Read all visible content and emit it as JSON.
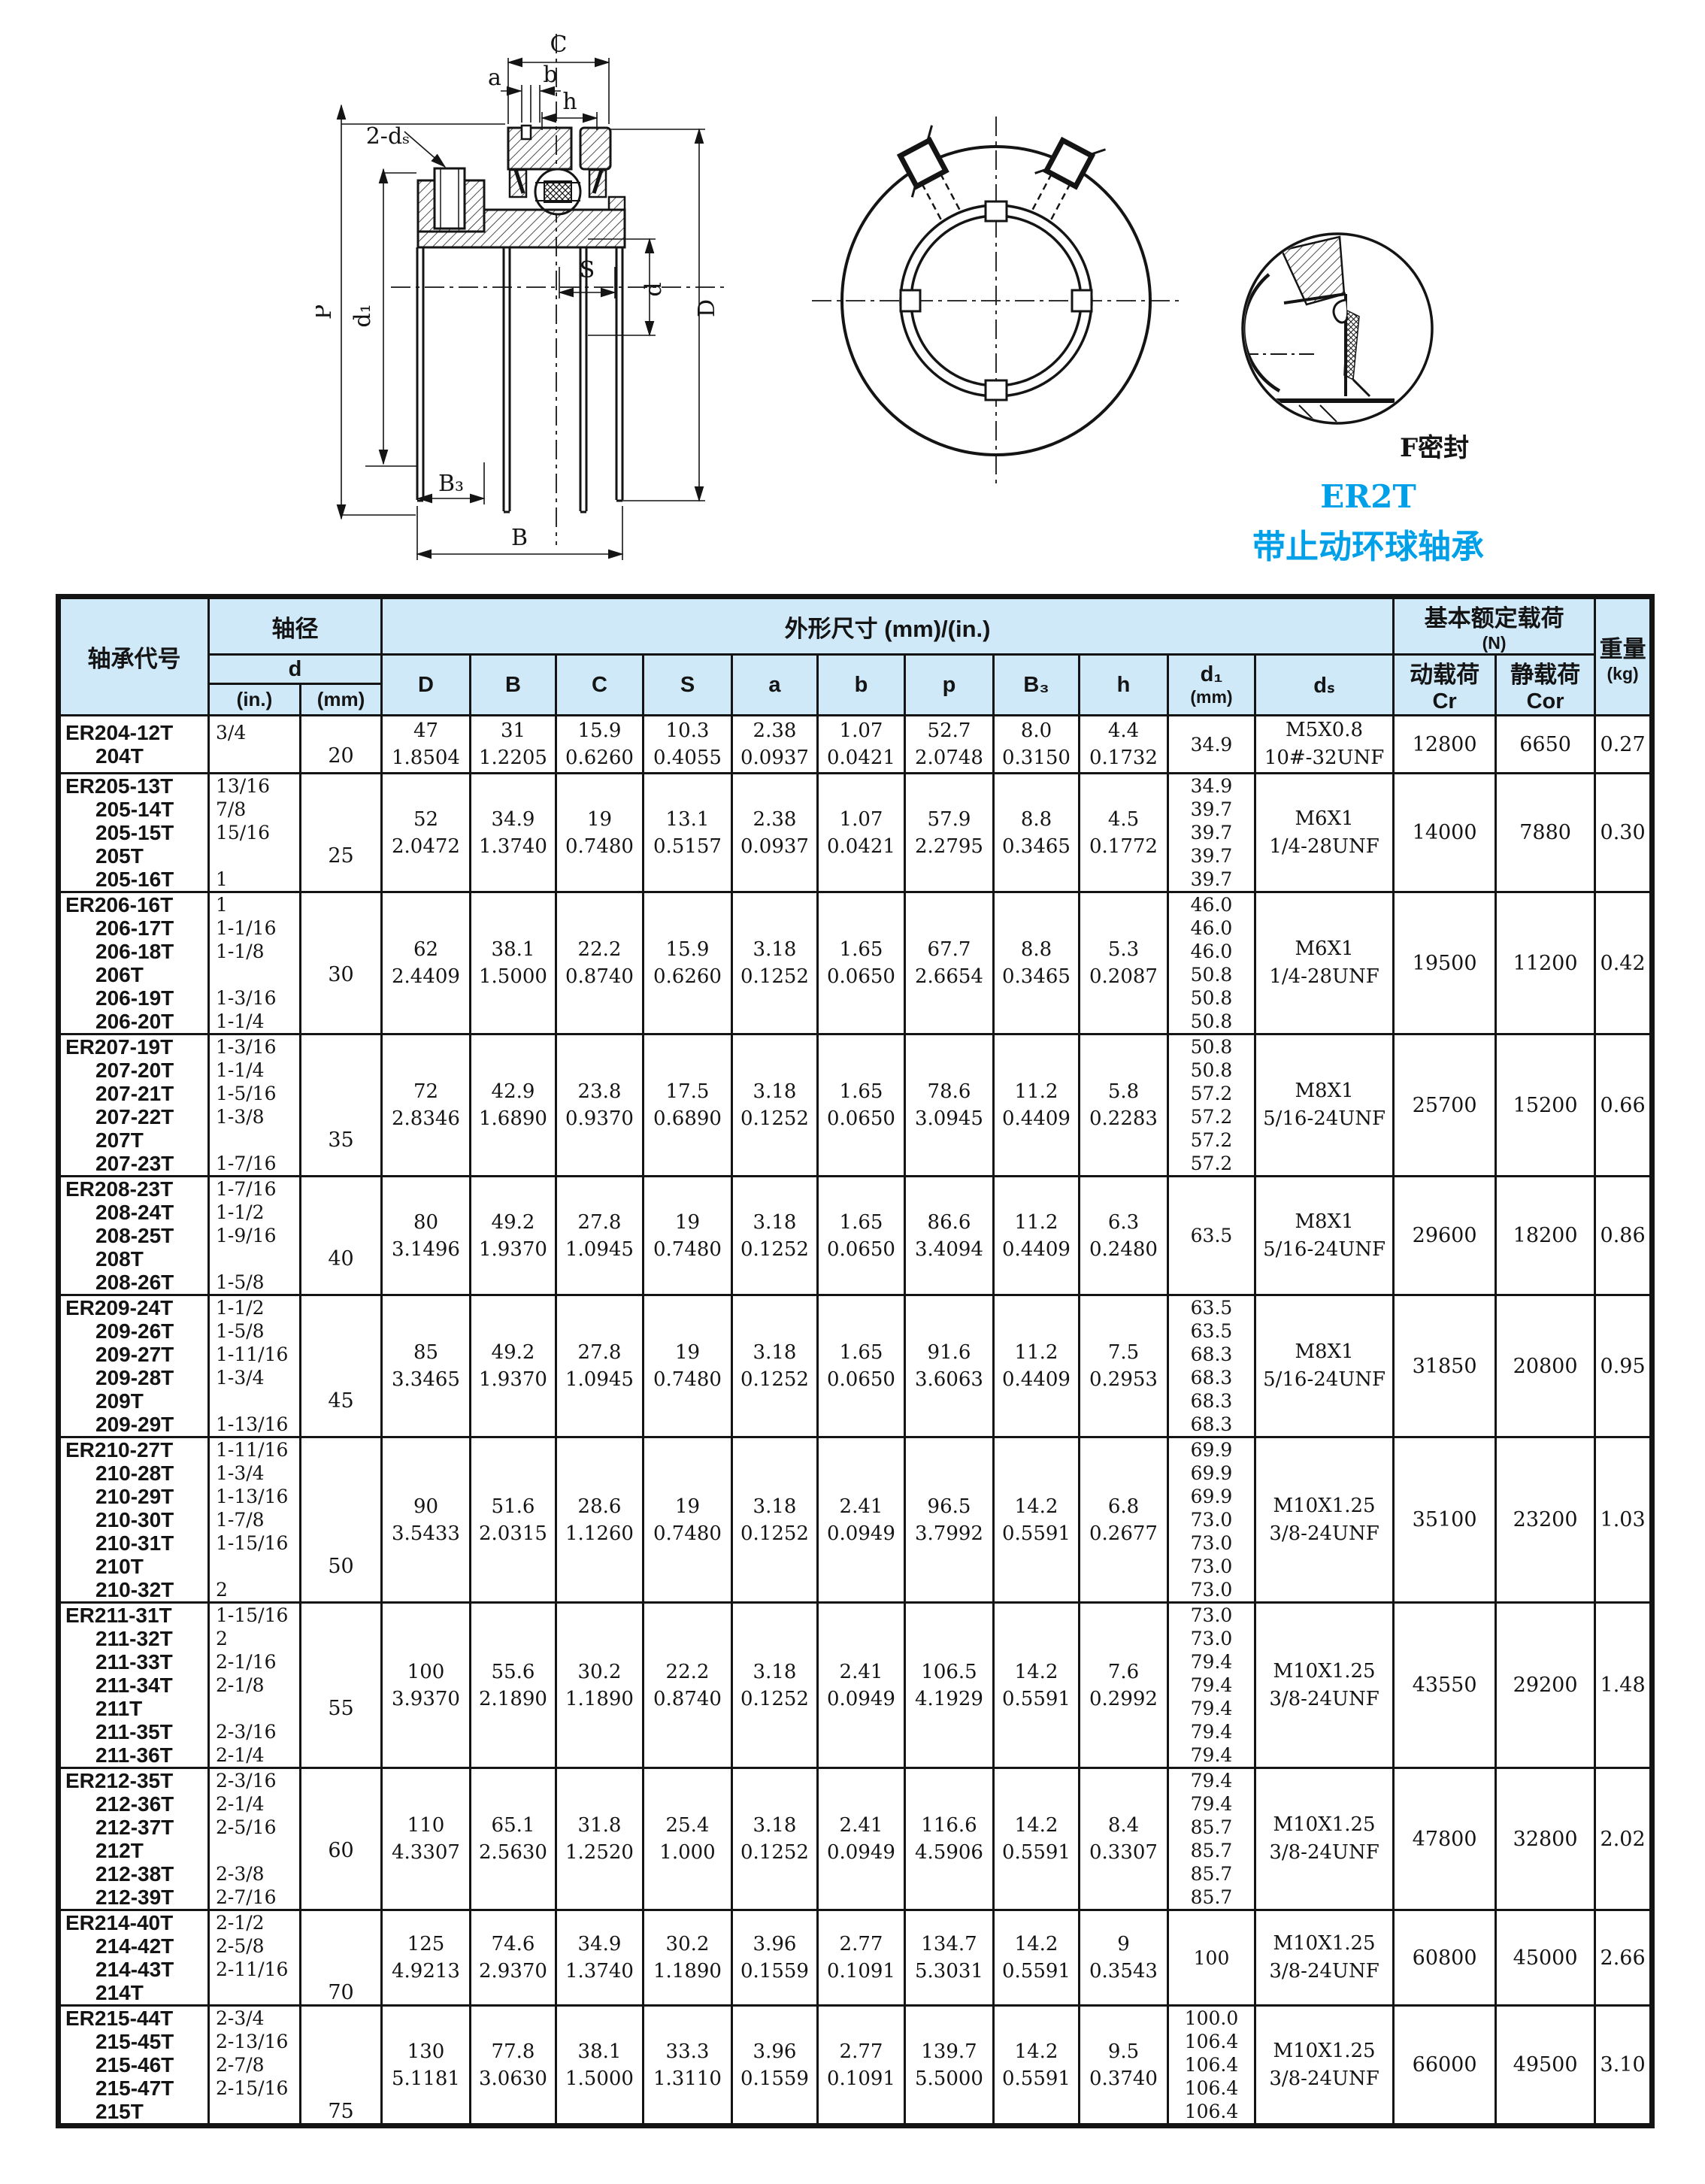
{
  "page": {
    "background": "#ffffff",
    "ink": "#141414",
    "header_bg": "#cfe9f8",
    "accent_blue": "#00a0e9"
  },
  "title": {
    "series": "ER2T",
    "product": "带止动环球轴承"
  },
  "drawing": {
    "seal_type": "F密封",
    "labels": {
      "C": "C",
      "a": "a",
      "b": "b",
      "h": "h",
      "two_ds": "2-dₛ",
      "S": "S",
      "P": "P",
      "d1": "d₁",
      "d": "d",
      "D": "D",
      "B3": "B₃",
      "B": "B"
    }
  },
  "table": {
    "header": {
      "bearing_code": "轴承代号",
      "shaft_dia": "轴径",
      "d": "d",
      "in_unit": "(in.)",
      "mm_unit": "(mm)",
      "dims_title": "外形尺寸 (mm)/(in.)",
      "dim_cols": [
        "D",
        "B",
        "C",
        "S",
        "a",
        "b",
        "p",
        "B₃",
        "h"
      ],
      "d1_label": "d₁",
      "d1_unit": "(mm)",
      "ds_label": "dₛ",
      "load_title": "基本额定载荷",
      "load_unit": "(N)",
      "cr_label": "动载荷",
      "cr_sym": "Cr",
      "cor_label": "静载荷",
      "cor_sym": "Cor",
      "weight_label": "重量",
      "weight_unit": "(kg)"
    },
    "groups": [
      {
        "codes": [
          "ER204-12T",
          "204T"
        ],
        "inches": [
          "3/4",
          ""
        ],
        "mm": "20",
        "mm_line": 1,
        "dims": [
          [
            "47",
            "1.8504"
          ],
          [
            "31",
            "1.2205"
          ],
          [
            "15.9",
            "0.6260"
          ],
          [
            "10.3",
            "0.4055"
          ],
          [
            "2.38",
            "0.0937"
          ],
          [
            "1.07",
            "0.0421"
          ],
          [
            "52.7",
            "2.0748"
          ],
          [
            "8.0",
            "0.3150"
          ],
          [
            "4.4",
            "0.1732"
          ]
        ],
        "d1": [
          "34.9"
        ],
        "ds": [
          "M5X0.8",
          "10#-32UNF"
        ],
        "cr": "12800",
        "cor": "6650",
        "weight": "0.27"
      },
      {
        "codes": [
          "ER205-13T",
          "205-14T",
          "205-15T",
          "205T",
          "205-16T"
        ],
        "inches": [
          "13/16",
          "7/8",
          "15/16",
          "",
          "1"
        ],
        "mm": "25",
        "mm_line": 3,
        "dims": [
          [
            "52",
            "2.0472"
          ],
          [
            "34.9",
            "1.3740"
          ],
          [
            "19",
            "0.7480"
          ],
          [
            "13.1",
            "0.5157"
          ],
          [
            "2.38",
            "0.0937"
          ],
          [
            "1.07",
            "0.0421"
          ],
          [
            "57.9",
            "2.2795"
          ],
          [
            "8.8",
            "0.3465"
          ],
          [
            "4.5",
            "0.1772"
          ]
        ],
        "d1": [
          "34.9",
          "39.7",
          "39.7",
          "39.7",
          "39.7"
        ],
        "ds": [
          "M6X1",
          "1/4-28UNF"
        ],
        "cr": "14000",
        "cor": "7880",
        "weight": "0.30"
      },
      {
        "codes": [
          "ER206-16T",
          "206-17T",
          "206-18T",
          "206T",
          "206-19T",
          "206-20T"
        ],
        "inches": [
          "1",
          "1-1/16",
          "1-1/8",
          "",
          "1-3/16",
          "1-1/4"
        ],
        "mm": "30",
        "mm_line": 3,
        "dims": [
          [
            "62",
            "2.4409"
          ],
          [
            "38.1",
            "1.5000"
          ],
          [
            "22.2",
            "0.8740"
          ],
          [
            "15.9",
            "0.6260"
          ],
          [
            "3.18",
            "0.1252"
          ],
          [
            "1.65",
            "0.0650"
          ],
          [
            "67.7",
            "2.6654"
          ],
          [
            "8.8",
            "0.3465"
          ],
          [
            "5.3",
            "0.2087"
          ]
        ],
        "d1": [
          "46.0",
          "46.0",
          "46.0",
          "50.8",
          "50.8",
          "50.8"
        ],
        "ds": [
          "M6X1",
          "1/4-28UNF"
        ],
        "cr": "19500",
        "cor": "11200",
        "weight": "0.42"
      },
      {
        "codes": [
          "ER207-19T",
          "207-20T",
          "207-21T",
          "207-22T",
          "207T",
          "207-23T"
        ],
        "inches": [
          "1-3/16",
          "1-1/4",
          "1-5/16",
          "1-3/8",
          "",
          "1-7/16"
        ],
        "mm": "35",
        "mm_line": 4,
        "dims": [
          [
            "72",
            "2.8346"
          ],
          [
            "42.9",
            "1.6890"
          ],
          [
            "23.8",
            "0.9370"
          ],
          [
            "17.5",
            "0.6890"
          ],
          [
            "3.18",
            "0.1252"
          ],
          [
            "1.65",
            "0.0650"
          ],
          [
            "78.6",
            "3.0945"
          ],
          [
            "11.2",
            "0.4409"
          ],
          [
            "5.8",
            "0.2283"
          ]
        ],
        "d1": [
          "50.8",
          "50.8",
          "57.2",
          "57.2",
          "57.2",
          "57.2"
        ],
        "ds": [
          "M8X1",
          "5/16-24UNF"
        ],
        "cr": "25700",
        "cor": "15200",
        "weight": "0.66"
      },
      {
        "codes": [
          "ER208-23T",
          "208-24T",
          "208-25T",
          "208T",
          "208-26T"
        ],
        "inches": [
          "1-7/16",
          "1-1/2",
          "1-9/16",
          "",
          "1-5/8"
        ],
        "mm": "40",
        "mm_line": 3,
        "dims": [
          [
            "80",
            "3.1496"
          ],
          [
            "49.2",
            "1.9370"
          ],
          [
            "27.8",
            "1.0945"
          ],
          [
            "19",
            "0.7480"
          ],
          [
            "3.18",
            "0.1252"
          ],
          [
            "1.65",
            "0.0650"
          ],
          [
            "86.6",
            "3.4094"
          ],
          [
            "11.2",
            "0.4409"
          ],
          [
            "6.3",
            "0.2480"
          ]
        ],
        "d1": [
          "63.5"
        ],
        "ds": [
          "M8X1",
          "5/16-24UNF"
        ],
        "cr": "29600",
        "cor": "18200",
        "weight": "0.86"
      },
      {
        "codes": [
          "ER209-24T",
          "209-26T",
          "209-27T",
          "209-28T",
          "209T",
          "209-29T"
        ],
        "inches": [
          "1-1/2",
          "1-5/8",
          "1-11/16",
          "1-3/4",
          "",
          "1-13/16"
        ],
        "mm": "45",
        "mm_line": 4,
        "dims": [
          [
            "85",
            "3.3465"
          ],
          [
            "49.2",
            "1.9370"
          ],
          [
            "27.8",
            "1.0945"
          ],
          [
            "19",
            "0.7480"
          ],
          [
            "3.18",
            "0.1252"
          ],
          [
            "1.65",
            "0.0650"
          ],
          [
            "91.6",
            "3.6063"
          ],
          [
            "11.2",
            "0.4409"
          ],
          [
            "7.5",
            "0.2953"
          ]
        ],
        "d1": [
          "63.5",
          "63.5",
          "68.3",
          "68.3",
          "68.3",
          "68.3"
        ],
        "ds": [
          "M8X1",
          "5/16-24UNF"
        ],
        "cr": "31850",
        "cor": "20800",
        "weight": "0.95"
      },
      {
        "codes": [
          "ER210-27T",
          "210-28T",
          "210-29T",
          "210-30T",
          "210-31T",
          "210T",
          "210-32T"
        ],
        "inches": [
          "1-11/16",
          "1-3/4",
          "1-13/16",
          "1-7/8",
          "1-15/16",
          "",
          "2"
        ],
        "mm": "50",
        "mm_line": 5,
        "dims": [
          [
            "90",
            "3.5433"
          ],
          [
            "51.6",
            "2.0315"
          ],
          [
            "28.6",
            "1.1260"
          ],
          [
            "19",
            "0.7480"
          ],
          [
            "3.18",
            "0.1252"
          ],
          [
            "2.41",
            "0.0949"
          ],
          [
            "96.5",
            "3.7992"
          ],
          [
            "14.2",
            "0.5591"
          ],
          [
            "6.8",
            "0.2677"
          ]
        ],
        "d1": [
          "69.9",
          "69.9",
          "69.9",
          "73.0",
          "73.0",
          "73.0",
          "73.0"
        ],
        "ds": [
          "M10X1.25",
          "3/8-24UNF"
        ],
        "cr": "35100",
        "cor": "23200",
        "weight": "1.03"
      },
      {
        "codes": [
          "ER211-31T",
          "211-32T",
          "211-33T",
          "211-34T",
          "211T",
          "211-35T",
          "211-36T"
        ],
        "inches": [
          "1-15/16",
          "2",
          "2-1/16",
          "2-1/8",
          "",
          "2-3/16",
          "2-1/4"
        ],
        "mm": "55",
        "mm_line": 4,
        "dims": [
          [
            "100",
            "3.9370"
          ],
          [
            "55.6",
            "2.1890"
          ],
          [
            "30.2",
            "1.1890"
          ],
          [
            "22.2",
            "0.8740"
          ],
          [
            "3.18",
            "0.1252"
          ],
          [
            "2.41",
            "0.0949"
          ],
          [
            "106.5",
            "4.1929"
          ],
          [
            "14.2",
            "0.5591"
          ],
          [
            "7.6",
            "0.2992"
          ]
        ],
        "d1": [
          "73.0",
          "73.0",
          "79.4",
          "79.4",
          "79.4",
          "79.4",
          "79.4"
        ],
        "ds": [
          "M10X1.25",
          "3/8-24UNF"
        ],
        "cr": "43550",
        "cor": "29200",
        "weight": "1.48"
      },
      {
        "codes": [
          "ER212-35T",
          "212-36T",
          "212-37T",
          "212T",
          "212-38T",
          "212-39T"
        ],
        "inches": [
          "2-3/16",
          "2-1/4",
          "2-5/16",
          "",
          "2-3/8",
          "2-7/16"
        ],
        "mm": "60",
        "mm_line": 3,
        "dims": [
          [
            "110",
            "4.3307"
          ],
          [
            "65.1",
            "2.5630"
          ],
          [
            "31.8",
            "1.2520"
          ],
          [
            "25.4",
            "1.000"
          ],
          [
            "3.18",
            "0.1252"
          ],
          [
            "2.41",
            "0.0949"
          ],
          [
            "116.6",
            "4.5906"
          ],
          [
            "14.2",
            "0.5591"
          ],
          [
            "8.4",
            "0.3307"
          ]
        ],
        "d1": [
          "79.4",
          "79.4",
          "85.7",
          "85.7",
          "85.7",
          "85.7"
        ],
        "ds": [
          "M10X1.25",
          "3/8-24UNF"
        ],
        "cr": "47800",
        "cor": "32800",
        "weight": "2.02"
      },
      {
        "codes": [
          "ER214-40T",
          "214-42T",
          "214-43T",
          "214T"
        ],
        "inches": [
          "2-1/2",
          "2-5/8",
          "2-11/16",
          ""
        ],
        "mm": "70",
        "mm_line": 3,
        "dims": [
          [
            "125",
            "4.9213"
          ],
          [
            "74.6",
            "2.9370"
          ],
          [
            "34.9",
            "1.3740"
          ],
          [
            "30.2",
            "1.1890"
          ],
          [
            "3.96",
            "0.1559"
          ],
          [
            "2.77",
            "0.1091"
          ],
          [
            "134.7",
            "5.3031"
          ],
          [
            "14.2",
            "0.5591"
          ],
          [
            "9",
            "0.3543"
          ]
        ],
        "d1": [
          "100"
        ],
        "ds": [
          "M10X1.25",
          "3/8-24UNF"
        ],
        "cr": "60800",
        "cor": "45000",
        "weight": "2.66"
      },
      {
        "codes": [
          "ER215-44T",
          "215-45T",
          "215-46T",
          "215-47T",
          "215T"
        ],
        "inches": [
          "2-3/4",
          "2-13/16",
          "2-7/8",
          "2-15/16",
          ""
        ],
        "mm": "75",
        "mm_line": 4,
        "dims": [
          [
            "130",
            "5.1181"
          ],
          [
            "77.8",
            "3.0630"
          ],
          [
            "38.1",
            "1.5000"
          ],
          [
            "33.3",
            "1.3110"
          ],
          [
            "3.96",
            "0.1559"
          ],
          [
            "2.77",
            "0.1091"
          ],
          [
            "139.7",
            "5.5000"
          ],
          [
            "14.2",
            "0.5591"
          ],
          [
            "9.5",
            "0.3740"
          ]
        ],
        "d1": [
          "100.0",
          "106.4",
          "106.4",
          "106.4",
          "106.4"
        ],
        "ds": [
          "M10X1.25",
          "3/8-24UNF"
        ],
        "cr": "66000",
        "cor": "49500",
        "weight": "3.10"
      }
    ]
  }
}
